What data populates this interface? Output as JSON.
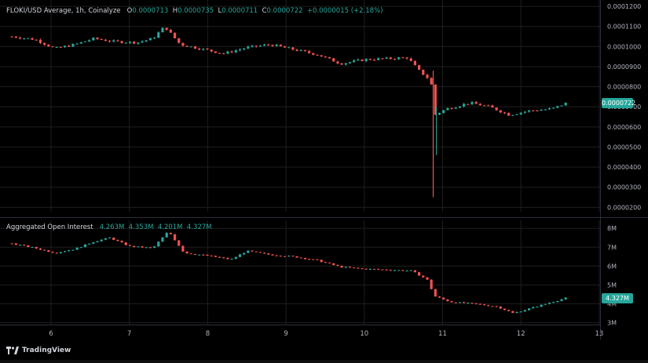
{
  "price_header": {
    "symbol_line": "FLOKI/USD Average, 1h, Coinalyze",
    "o_label": "O",
    "o_value": "0.0000713",
    "h_label": "H",
    "h_value": "0.0000735",
    "l_label": "L",
    "l_value": "0.0000711",
    "c_label": "C",
    "c_value": "0.0000722",
    "change": "+0.0000015 (+2.18%)"
  },
  "oi_header": {
    "title": "Aggregated Open Interest",
    "v1": "4.263M",
    "v2": "4.353M",
    "v3": "4.201M",
    "v4": "4.327M"
  },
  "brand": "TradingView",
  "colors": {
    "up": "#26a69a",
    "down": "#ef5350",
    "background": "#000000",
    "grid": "#1e1e1e",
    "text": "#d1d4dc"
  },
  "chart_data": [
    {
      "type": "candlestick",
      "pane": "price",
      "x": [
        "6",
        "7",
        "8",
        "9",
        "10",
        "11",
        "12",
        "13"
      ],
      "y_ticks": [
        "0.0001200",
        "0.0001100",
        "0.0001000",
        "0.0000900",
        "0.0000800",
        "0.0000700",
        "0.0000600",
        "0.0000500",
        "0.0000400",
        "0.0000300",
        "0.0000200"
      ],
      "ylim": [
        1.78e-05,
        0.000122
      ],
      "last_value": "0.0000722",
      "series": [
        {
          "x": 5.5,
          "y": 0.000105
        },
        {
          "x": 5.8,
          "y": 0.0001035
        },
        {
          "x": 6.05,
          "y": 9.9e-05
        },
        {
          "x": 6.3,
          "y": 0.000101
        },
        {
          "x": 6.55,
          "y": 0.000104
        },
        {
          "x": 6.8,
          "y": 0.0001025
        },
        {
          "x": 7.1,
          "y": 0.000102
        },
        {
          "x": 7.3,
          "y": 0.000104
        },
        {
          "x": 7.45,
          "y": 0.00011
        },
        {
          "x": 7.65,
          "y": 0.000101
        },
        {
          "x": 7.9,
          "y": 9.9e-05
        },
        {
          "x": 8.2,
          "y": 9.65e-05
        },
        {
          "x": 8.5,
          "y": 9.95e-05
        },
        {
          "x": 8.8,
          "y": 0.000101
        },
        {
          "x": 9.1,
          "y": 9.85e-05
        },
        {
          "x": 9.4,
          "y": 9.6e-05
        },
        {
          "x": 9.7,
          "y": 9.15e-05
        },
        {
          "x": 10.0,
          "y": 9.35e-05
        },
        {
          "x": 10.3,
          "y": 9.4e-05
        },
        {
          "x": 10.55,
          "y": 9.45e-05
        },
        {
          "x": 10.7,
          "y": 8.8e-05
        },
        {
          "x": 10.85,
          "y": 8.3e-05
        },
        {
          "x": 10.9,
          "y": 6.6e-05
        },
        {
          "x": 11.05,
          "y": 6.9e-05
        },
        {
          "x": 11.35,
          "y": 7.2e-05
        },
        {
          "x": 11.6,
          "y": 7e-05
        },
        {
          "x": 11.85,
          "y": 6.6e-05
        },
        {
          "x": 12.1,
          "y": 6.8e-05
        },
        {
          "x": 12.4,
          "y": 6.9e-05
        },
        {
          "x": 12.6,
          "y": 7.22e-05
        }
      ],
      "spike_low": {
        "x": 10.88,
        "y": 2.5e-05
      }
    },
    {
      "type": "candlestick",
      "pane": "open_interest",
      "x": [
        "6",
        "7",
        "8",
        "9",
        "10",
        "11",
        "12",
        "13"
      ],
      "y_ticks": [
        "8M",
        "7M",
        "6M",
        "5M",
        "4M",
        "3M"
      ],
      "ylim": [
        2.9,
        8.3
      ],
      "last_value": "4.327M",
      "series": [
        {
          "x": 5.5,
          "y": 7.2
        },
        {
          "x": 5.8,
          "y": 6.95
        },
        {
          "x": 6.05,
          "y": 6.7
        },
        {
          "x": 6.3,
          "y": 6.9
        },
        {
          "x": 6.55,
          "y": 7.3
        },
        {
          "x": 6.75,
          "y": 7.5
        },
        {
          "x": 7.0,
          "y": 7.05
        },
        {
          "x": 7.3,
          "y": 6.95
        },
        {
          "x": 7.5,
          "y": 7.85
        },
        {
          "x": 7.7,
          "y": 6.7
        },
        {
          "x": 8.0,
          "y": 6.55
        },
        {
          "x": 8.3,
          "y": 6.35
        },
        {
          "x": 8.5,
          "y": 6.8
        },
        {
          "x": 8.8,
          "y": 6.6
        },
        {
          "x": 9.1,
          "y": 6.5
        },
        {
          "x": 9.4,
          "y": 6.3
        },
        {
          "x": 9.7,
          "y": 5.95
        },
        {
          "x": 10.0,
          "y": 5.85
        },
        {
          "x": 10.3,
          "y": 5.8
        },
        {
          "x": 10.6,
          "y": 5.75
        },
        {
          "x": 10.8,
          "y": 5.3
        },
        {
          "x": 10.9,
          "y": 4.4
        },
        {
          "x": 11.1,
          "y": 4.1
        },
        {
          "x": 11.4,
          "y": 4.0
        },
        {
          "x": 11.7,
          "y": 3.85
        },
        {
          "x": 11.9,
          "y": 3.5
        },
        {
          "x": 12.15,
          "y": 3.8
        },
        {
          "x": 12.4,
          "y": 4.1
        },
        {
          "x": 12.6,
          "y": 4.33
        }
      ]
    }
  ]
}
